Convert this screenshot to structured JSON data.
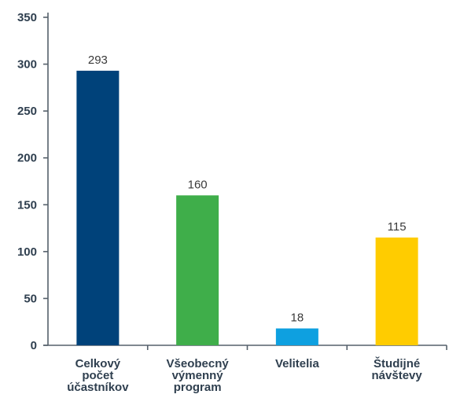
{
  "chart_data": {
    "type": "bar",
    "title": "",
    "xlabel": "",
    "ylabel": "",
    "categories": [
      [
        "Celkový",
        "počet",
        "účastníkov"
      ],
      [
        "Všeobecný",
        "výmenný",
        "program"
      ],
      [
        "Velitelia"
      ],
      [
        "Študijné",
        "návštevy"
      ]
    ],
    "values": [
      293,
      160,
      18,
      115
    ],
    "value_labels": [
      "293",
      "160",
      "18",
      "115"
    ],
    "colors": [
      "#00427a",
      "#3fae4a",
      "#0ea0e0",
      "#ffcc00"
    ],
    "ylim": [
      0,
      350
    ],
    "yticks": [
      0,
      50,
      100,
      150,
      200,
      250,
      300,
      350
    ],
    "grid": false
  }
}
